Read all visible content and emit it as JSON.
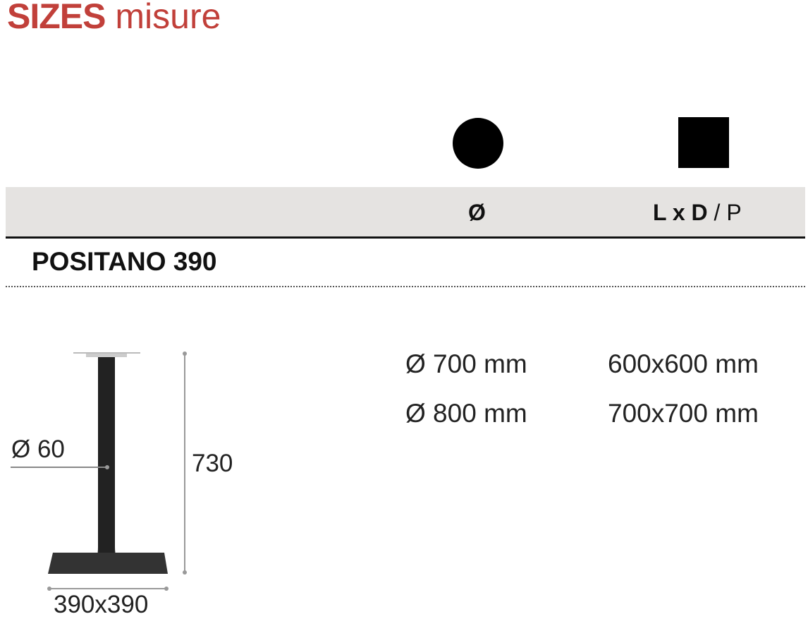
{
  "title": {
    "bold": "SIZES",
    "light": "misure"
  },
  "header": {
    "round_icon": "circle-shape-icon",
    "square_icon": "square-shape-icon",
    "diameter_label": "Ø",
    "ld_label": "L x D",
    "p_label": "/ P"
  },
  "product": {
    "name": "POSITANO 390"
  },
  "sizes": {
    "round": [
      "Ø 700 mm",
      "Ø 800 mm"
    ],
    "square": [
      "600x600 mm",
      "700x700 mm"
    ]
  },
  "drawing": {
    "column_diameter": "Ø 60",
    "height": "730",
    "base": "390x390"
  },
  "colors": {
    "accent": "#c1403a"
  }
}
